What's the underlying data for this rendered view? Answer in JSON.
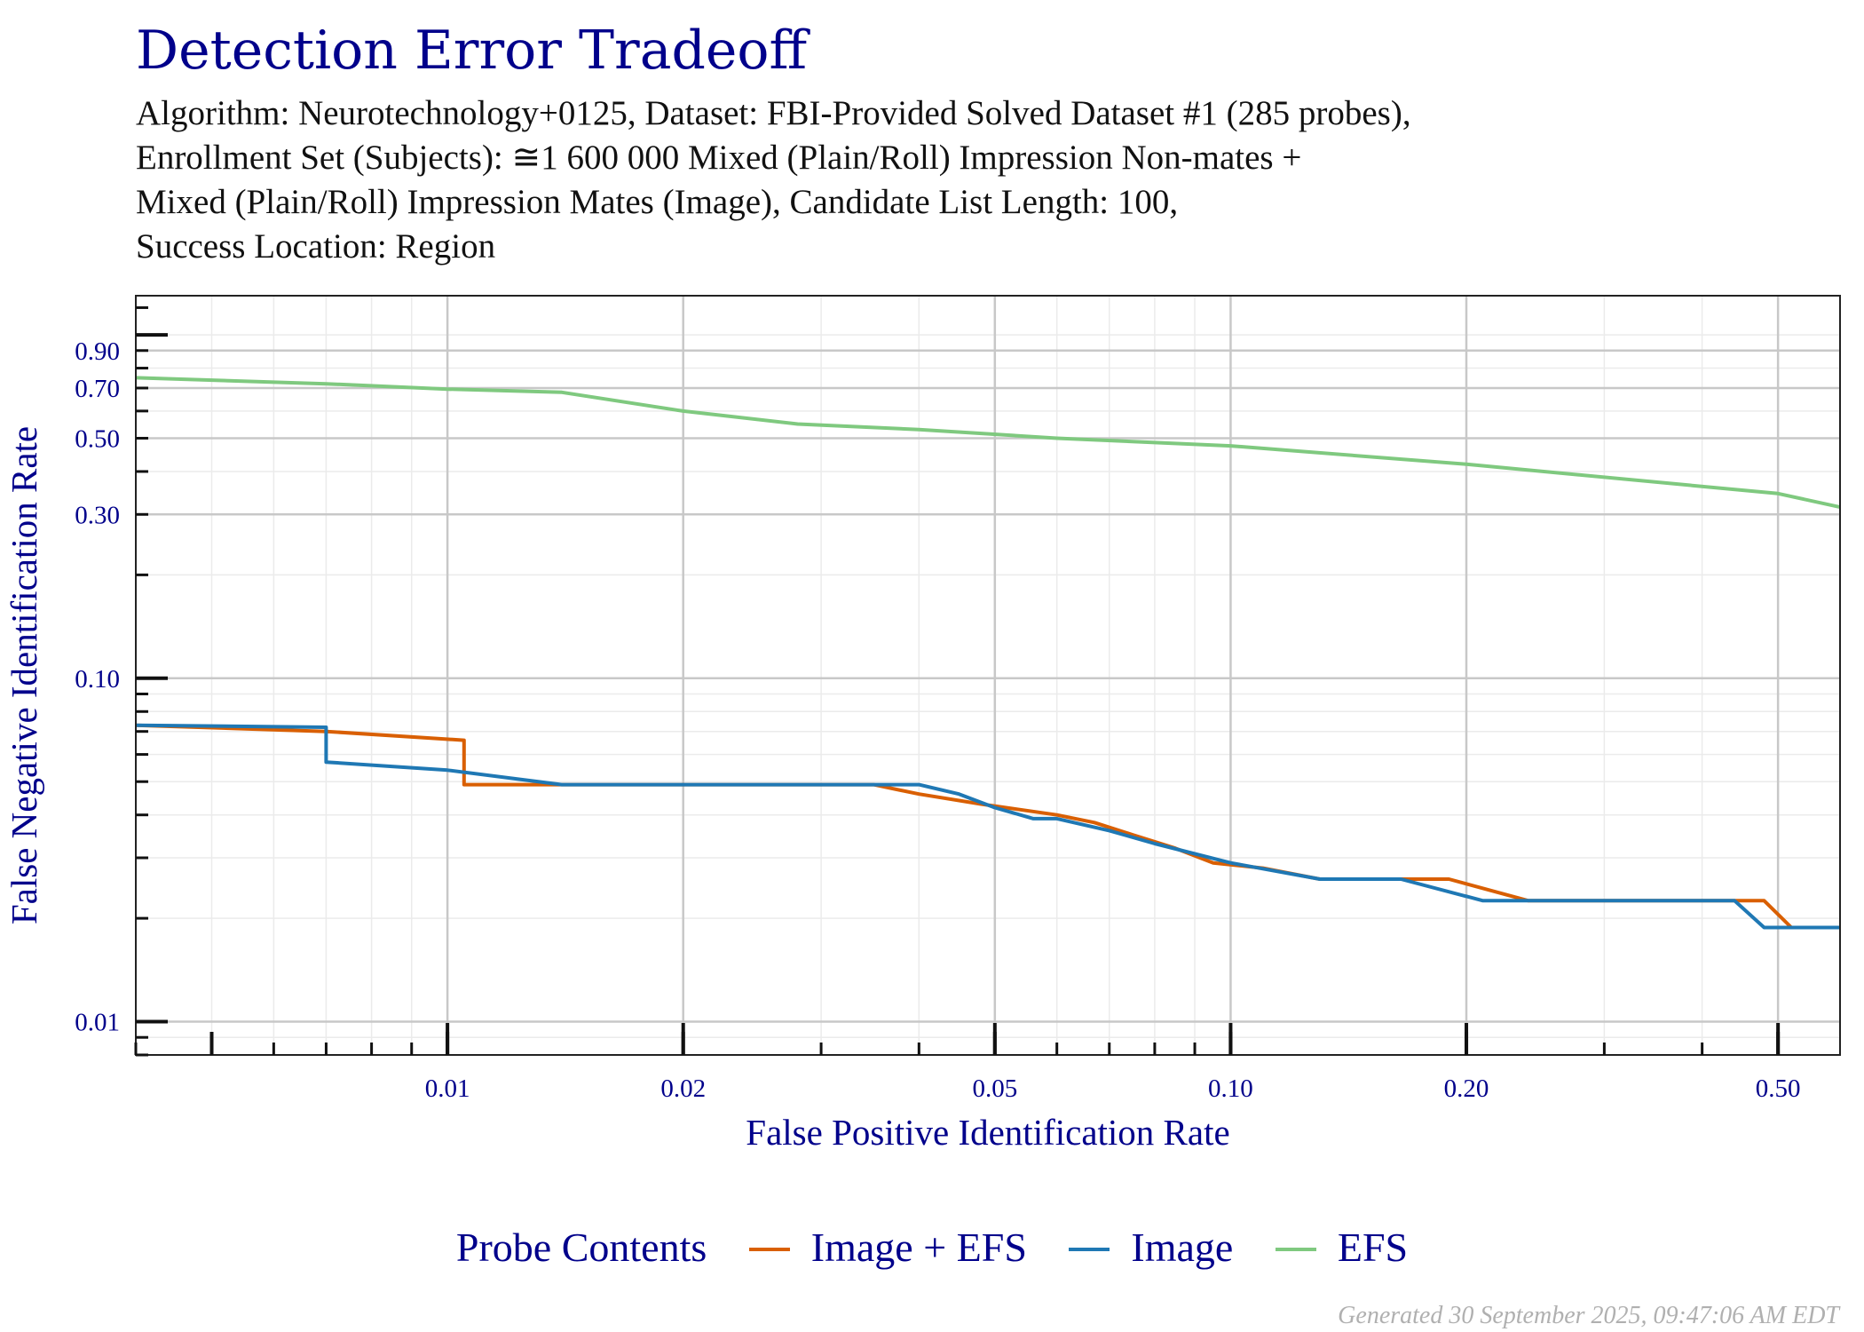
{
  "chart_data": {
    "type": "line",
    "title": "Detection Error Tradeoff",
    "subtitle_lines": [
      "Algorithm: Neurotechnology+0125, Dataset: FBI-Provided Solved Dataset #1 (285 probes),",
      "Enrollment Set (Subjects): ≅1 600 000 Mixed (Plain/Roll) Impression Non-mates +",
      "Mixed (Plain/Roll) Impression Mates (Image), Candidate List Length: 100,",
      "Success Location: Region"
    ],
    "xlabel": "False Positive Identification Rate",
    "ylabel": "False Negative Identification Rate",
    "x_scale": "log",
    "y_scale": "log",
    "xlim": [
      0.004,
      0.6
    ],
    "ylim": [
      0.008,
      1.3
    ],
    "x_tick_labels": [
      {
        "value": 0.01,
        "label": "0.01"
      },
      {
        "value": 0.02,
        "label": "0.02"
      },
      {
        "value": 0.05,
        "label": "0.05"
      },
      {
        "value": 0.1,
        "label": "0.10"
      },
      {
        "value": 0.2,
        "label": "0.20"
      },
      {
        "value": 0.5,
        "label": "0.50"
      }
    ],
    "y_tick_labels": [
      {
        "value": 0.01,
        "label": "0.01"
      },
      {
        "value": 0.1,
        "label": "0.10"
      },
      {
        "value": 0.3,
        "label": "0.30"
      },
      {
        "value": 0.5,
        "label": "0.50"
      },
      {
        "value": 0.7,
        "label": "0.70"
      },
      {
        "value": 0.9,
        "label": "0.90"
      }
    ],
    "grid": true,
    "legend": {
      "title": "Probe Contents",
      "placement": "bottom"
    },
    "series": [
      {
        "name": "Image + EFS",
        "color": "#d95f02",
        "points": [
          [
            0.004,
            0.073
          ],
          [
            0.007,
            0.07
          ],
          [
            0.0105,
            0.066
          ],
          [
            0.0105,
            0.049
          ],
          [
            0.014,
            0.049
          ],
          [
            0.035,
            0.049
          ],
          [
            0.04,
            0.046
          ],
          [
            0.048,
            0.043
          ],
          [
            0.06,
            0.04
          ],
          [
            0.067,
            0.038
          ],
          [
            0.075,
            0.035
          ],
          [
            0.085,
            0.032
          ],
          [
            0.095,
            0.029
          ],
          [
            0.11,
            0.028
          ],
          [
            0.13,
            0.026
          ],
          [
            0.19,
            0.026
          ],
          [
            0.24,
            0.0225
          ],
          [
            0.48,
            0.0225
          ],
          [
            0.52,
            0.0188
          ],
          [
            0.6,
            0.0188
          ]
        ]
      },
      {
        "name": "Image",
        "color": "#1f78b4",
        "points": [
          [
            0.004,
            0.073
          ],
          [
            0.007,
            0.072
          ],
          [
            0.007,
            0.057
          ],
          [
            0.01,
            0.054
          ],
          [
            0.014,
            0.049
          ],
          [
            0.04,
            0.049
          ],
          [
            0.045,
            0.046
          ],
          [
            0.05,
            0.042
          ],
          [
            0.056,
            0.039
          ],
          [
            0.06,
            0.039
          ],
          [
            0.07,
            0.036
          ],
          [
            0.08,
            0.033
          ],
          [
            0.1,
            0.029
          ],
          [
            0.13,
            0.026
          ],
          [
            0.165,
            0.026
          ],
          [
            0.21,
            0.0225
          ],
          [
            0.44,
            0.0225
          ],
          [
            0.48,
            0.0188
          ],
          [
            0.6,
            0.0188
          ]
        ]
      },
      {
        "name": "EFS",
        "color": "#7fc97f",
        "points": [
          [
            0.004,
            0.75
          ],
          [
            0.007,
            0.72
          ],
          [
            0.01,
            0.695
          ],
          [
            0.014,
            0.68
          ],
          [
            0.02,
            0.6
          ],
          [
            0.028,
            0.55
          ],
          [
            0.04,
            0.53
          ],
          [
            0.06,
            0.5
          ],
          [
            0.1,
            0.475
          ],
          [
            0.2,
            0.42
          ],
          [
            0.5,
            0.345
          ],
          [
            0.6,
            0.315
          ]
        ]
      }
    ]
  },
  "footer": {
    "generated": "Generated 30 September 2025, 09:47:06 AM EDT"
  }
}
